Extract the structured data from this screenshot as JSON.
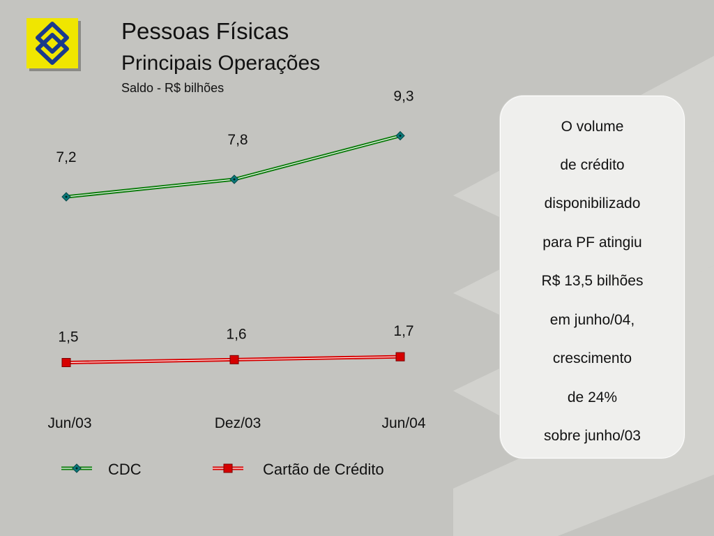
{
  "header": {
    "title": "Pessoas Físicas",
    "subtitle": "Principais Operações",
    "unit": "Saldo - R$ bilhões"
  },
  "colors": {
    "logo_yellow": "#f0e600",
    "logo_blue": "#1a3a8c",
    "cdc_line": "#0a7a0a",
    "cdc_marker": "#0a7a7a",
    "card_line": "#d60000",
    "background": "#c4c4c0"
  },
  "chart_data": {
    "type": "line",
    "categories": [
      "Jun/03",
      "Dez/03",
      "Jun/04"
    ],
    "series": [
      {
        "name": "CDC",
        "values": [
          7.2,
          7.8,
          9.3
        ],
        "labels": [
          "7,2",
          "7,8",
          "9,3"
        ],
        "marker": "diamond",
        "color": "#0a7a0a"
      },
      {
        "name": "Cartão de Crédito",
        "values": [
          1.5,
          1.6,
          1.7
        ],
        "labels": [
          "1,5",
          "1,6",
          "1,7"
        ],
        "marker": "square",
        "color": "#d60000"
      }
    ],
    "ylim": [
      0,
      12
    ],
    "legend": "bottom",
    "grid": false
  },
  "note": {
    "lines": [
      "O volume",
      "de crédito",
      "disponibilizado",
      "para PF atingiu",
      "R$ 13,5 bilhões",
      "em junho/04,",
      "crescimento",
      "de  24%",
      "sobre junho/03"
    ]
  },
  "legend": {
    "cdc_label": "CDC",
    "card_label": "Cartão de Crédito"
  }
}
